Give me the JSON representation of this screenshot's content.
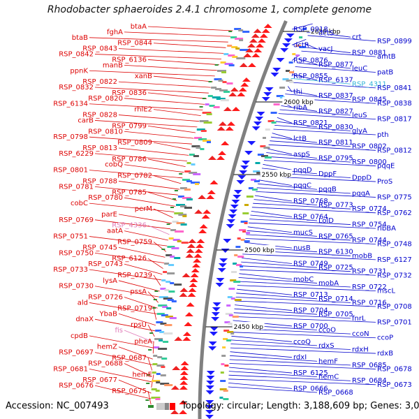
{
  "title": "Rhodobacter sphaeroides 2.4.1 chromosome 1, complete genome",
  "accession_text": "Accession: NC_007493",
  "topology_text": "Topology: circular; Length: 3,188,609 bp; Genes: 3,070",
  "kbp_labels": [
    "2650 kbp",
    "2600 kbp",
    "2550 kbp",
    "2500 kbp",
    "2450 kbp"
  ],
  "colors": {
    "left_labels": "#dd0000",
    "right_labels": "#0000cc",
    "highlight_pink": "#e07ab8",
    "highlight_cyan": "#33b5d8",
    "backbone": "#808080",
    "tick_green": "#2e8b2e"
  },
  "left_labels": [
    {
      "text": "btaA"
    },
    {
      "text": "fghA"
    },
    {
      "text": "btaB"
    },
    {
      "text": "RSP_0844"
    },
    {
      "text": "RSP_0843"
    },
    {
      "text": "RSP_0842"
    },
    {
      "text": "RSP_6136"
    },
    {
      "text": "manB"
    },
    {
      "text": "ppnK"
    },
    {
      "text": "xanB"
    },
    {
      "text": "RSP_0822"
    },
    {
      "text": "RSP_0832"
    },
    {
      "text": "RSP_0836"
    },
    {
      "text": "RSP_0820"
    },
    {
      "text": "RSP_6134"
    },
    {
      "text": "rhlE2"
    },
    {
      "text": "RSP_0828"
    },
    {
      "text": "carB"
    },
    {
      "text": "RSP_0799"
    },
    {
      "text": "RSP_0810"
    },
    {
      "text": "RSP_0798"
    },
    {
      "text": "RSP_0809"
    },
    {
      "text": "RSP_0813"
    },
    {
      "text": "RSP_6229"
    },
    {
      "text": "RSP_0786"
    },
    {
      "text": "cobQ"
    },
    {
      "text": "RSP_0801"
    },
    {
      "text": "RSP_0782"
    },
    {
      "text": "RSP_0788"
    },
    {
      "text": "RSP_0781"
    },
    {
      "text": "RSP_0785"
    },
    {
      "text": "RSP_0780"
    },
    {
      "text": "cobC"
    },
    {
      "text": "perM"
    },
    {
      "text": "parE"
    },
    {
      "text": "RSP_0769"
    },
    {
      "text": "RSP_4336",
      "pink": true
    },
    {
      "text": "aatA"
    },
    {
      "text": "RSP_0751"
    },
    {
      "text": "RSP_0759"
    },
    {
      "text": "RSP_0745"
    },
    {
      "text": "RSP_0750"
    },
    {
      "text": "RSP_6126"
    },
    {
      "text": "RSP_0743"
    },
    {
      "text": "RSP_0733"
    },
    {
      "text": "RSP_0739"
    },
    {
      "text": "lysA"
    },
    {
      "text": "RSP_0730"
    },
    {
      "text": "pssA"
    },
    {
      "text": "RSP_0726"
    },
    {
      "text": "ald"
    },
    {
      "text": "RSP_0719"
    },
    {
      "text": "YbaB"
    },
    {
      "text": "dnaX"
    },
    {
      "text": "rpsU"
    },
    {
      "text": "fis",
      "pink": true
    },
    {
      "text": "cpdB"
    },
    {
      "text": "pheA"
    },
    {
      "text": "hemZ"
    },
    {
      "text": "RSP_0697"
    },
    {
      "text": "RSP_0687"
    },
    {
      "text": "RSP_0688"
    },
    {
      "text": "RSP_0681"
    },
    {
      "text": "hemE"
    },
    {
      "text": "RSP_0677"
    },
    {
      "text": "RSP_0676"
    },
    {
      "text": "RSP_0675"
    }
  ],
  "right_labels": [
    {
      "text": "RSP_0918"
    },
    {
      "text": "dctS"
    },
    {
      "text": "crt"
    },
    {
      "text": "RSP_0899"
    },
    {
      "text": "dctR"
    },
    {
      "text": "vacJ"
    },
    {
      "text": "RSP_0881"
    },
    {
      "text": "amtB"
    },
    {
      "text": "RSP_0876"
    },
    {
      "text": "RSP_0877"
    },
    {
      "text": "leuC"
    },
    {
      "text": "patB"
    },
    {
      "text": "RSP_0855"
    },
    {
      "text": "RSP_6137"
    },
    {
      "text": "RSP_4311",
      "cyan": true
    },
    {
      "text": "RSP_0841"
    },
    {
      "text": "thi"
    },
    {
      "text": "RSP_0837"
    },
    {
      "text": "RSP_0845"
    },
    {
      "text": "RSP_0838"
    },
    {
      "text": "ribA"
    },
    {
      "text": "RSP_0827"
    },
    {
      "text": "leuS"
    },
    {
      "text": "RSP_0817"
    },
    {
      "text": "RSP_0821"
    },
    {
      "text": "RSP_0830"
    },
    {
      "text": "glyA"
    },
    {
      "text": "pth"
    },
    {
      "text": "lctB"
    },
    {
      "text": "RSP_0811"
    },
    {
      "text": "RSP_0802"
    },
    {
      "text": "RSP_0812"
    },
    {
      "text": "aspS"
    },
    {
      "text": "RSP_0795"
    },
    {
      "text": "RSP_0800"
    },
    {
      "text": "pqqE"
    },
    {
      "text": "pqqD"
    },
    {
      "text": "DppF"
    },
    {
      "text": "DppD"
    },
    {
      "text": "ProS"
    },
    {
      "text": "pqqC"
    },
    {
      "text": "pqqB"
    },
    {
      "text": "pqqA"
    },
    {
      "text": "RSP_0775"
    },
    {
      "text": "RSP_0768"
    },
    {
      "text": "RSP_0773"
    },
    {
      "text": "RSP_0774"
    },
    {
      "text": "RSP_0762"
    },
    {
      "text": "RSP_0764"
    },
    {
      "text": "LolD"
    },
    {
      "text": "RSP_0754"
    },
    {
      "text": "ribBA"
    },
    {
      "text": "mucS"
    },
    {
      "text": "RSP_0765"
    },
    {
      "text": "RSP_0744"
    },
    {
      "text": "RSP_0748"
    },
    {
      "text": "nusB"
    },
    {
      "text": "RSP_6130"
    },
    {
      "text": "mobB"
    },
    {
      "text": "RSP_6127"
    },
    {
      "text": "RSP_0749"
    },
    {
      "text": "RSP_0725"
    },
    {
      "text": "RSP_0731"
    },
    {
      "text": "RSP_0732"
    },
    {
      "text": "mobC"
    },
    {
      "text": "mobA"
    },
    {
      "text": "RSP_0722"
    },
    {
      "text": "mscL"
    },
    {
      "text": "RSP_0713"
    },
    {
      "text": "RSP_0714"
    },
    {
      "text": "RSP_0716"
    },
    {
      "text": "RSP_0708"
    },
    {
      "text": "RSP_0704"
    },
    {
      "text": "RSP_0705"
    },
    {
      "text": "fnrL"
    },
    {
      "text": "RSP_0701"
    },
    {
      "text": "RSP_0700"
    },
    {
      "text": "ccoO"
    },
    {
      "text": "ccoN"
    },
    {
      "text": "ccoP"
    },
    {
      "text": "ccoQ"
    },
    {
      "text": "rdxS"
    },
    {
      "text": "rdxH"
    },
    {
      "text": "rdxB"
    },
    {
      "text": "rdxI"
    },
    {
      "text": "hemF"
    },
    {
      "text": "RSP_0685"
    },
    {
      "text": "RSP_0678"
    },
    {
      "text": "RSP_6125"
    },
    {
      "text": "hemC"
    },
    {
      "text": "RSP_0684"
    },
    {
      "text": "RSP_0673"
    },
    {
      "text": "RSP_0666"
    },
    {
      "text": "RSP_0668"
    }
  ]
}
